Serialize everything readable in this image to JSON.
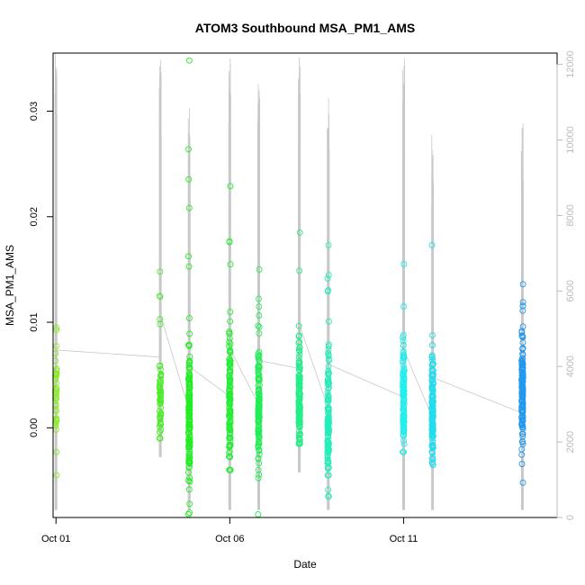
{
  "chart_data": {
    "type": "scatter",
    "title": "ATOM3 Southbound MSA_PM1_AMS",
    "xlabel": "Date",
    "ylabel": "MSA_PM1_AMS",
    "x_ticks": [
      "Oct 01",
      "Oct 06",
      "Oct 11"
    ],
    "xlim": [
      "Sep 30 22:00",
      "Oct 15 10:00"
    ],
    "ylim": [
      -0.0085,
      0.0355
    ],
    "y_ticks": [
      0.0,
      0.01,
      0.02,
      0.03
    ],
    "y_tick_labels": [
      "0.00",
      "0.01",
      "0.02",
      "0.03"
    ],
    "secondary_axis": {
      "side": "right",
      "color": "#bbbbbb",
      "ylim": [
        0,
        12300
      ],
      "ticks": [
        0,
        2000,
        4000,
        6000,
        8000,
        10000,
        12000
      ],
      "tick_labels": [
        "0",
        "2000",
        "4000",
        "6000",
        "8000",
        "10000",
        "12000"
      ]
    },
    "marker": "open-circle",
    "grid": false,
    "legend": "none",
    "line_color": "#c8c8c8",
    "sampling_periods": [
      {
        "time": "Oct 01 00:00",
        "color": "#88ee22",
        "center": 0.0035,
        "spread": 0.0025,
        "n": 40,
        "ymin": -0.0045,
        "ymax": 0.0095,
        "line_min": 200,
        "line_max": 12300
      },
      {
        "time": "Oct 04 00:00",
        "color": "#44ee22",
        "center": 0.002,
        "spread": 0.002,
        "n": 55,
        "ymin": -0.001,
        "ymax": 0.0148,
        "line_min": 1600,
        "line_max": 12200
      },
      {
        "time": "Oct 04 20:00",
        "color": "#22ee22",
        "center": 0.0015,
        "spread": 0.003,
        "n": 160,
        "ymin": -0.0082,
        "ymax": 0.0348,
        "line_min": 200,
        "line_max": 11000
      },
      {
        "time": "Oct 06 00:00",
        "color": "#22ee33",
        "center": 0.0025,
        "spread": 0.0035,
        "n": 130,
        "ymin": -0.004,
        "ymax": 0.0229,
        "line_min": 200,
        "line_max": 12300
      },
      {
        "time": "Oct 06 20:00",
        "color": "#22ee55",
        "center": 0.0015,
        "spread": 0.003,
        "n": 150,
        "ymin": -0.0082,
        "ymax": 0.015,
        "line_min": 200,
        "line_max": 11500
      },
      {
        "time": "Oct 08 00:00",
        "color": "#22ee88",
        "center": 0.0025,
        "spread": 0.0025,
        "n": 140,
        "ymin": -0.0015,
        "ymax": 0.0185,
        "line_min": 1200,
        "line_max": 12200
      },
      {
        "time": "Oct 08 20:00",
        "color": "#22eebb",
        "center": 0.001,
        "spread": 0.003,
        "n": 130,
        "ymin": -0.0065,
        "ymax": 0.0173,
        "line_min": 200,
        "line_max": 11200
      },
      {
        "time": "Oct 11 00:00",
        "color": "#22eeee",
        "center": 0.0025,
        "spread": 0.0025,
        "n": 130,
        "ymin": -0.0023,
        "ymax": 0.0155,
        "line_min": 200,
        "line_max": 12200
      },
      {
        "time": "Oct 11 20:00",
        "color": "#22ddee",
        "center": 0.002,
        "spread": 0.0025,
        "n": 150,
        "ymin": -0.0035,
        "ymax": 0.0173,
        "line_min": 200,
        "line_max": 10200
      },
      {
        "time": "Oct 14 10:00",
        "color": "#2299ee",
        "center": 0.0035,
        "spread": 0.0025,
        "n": 160,
        "ymin": -0.0052,
        "ymax": 0.0136,
        "line_min": 200,
        "line_max": 10500
      }
    ]
  }
}
